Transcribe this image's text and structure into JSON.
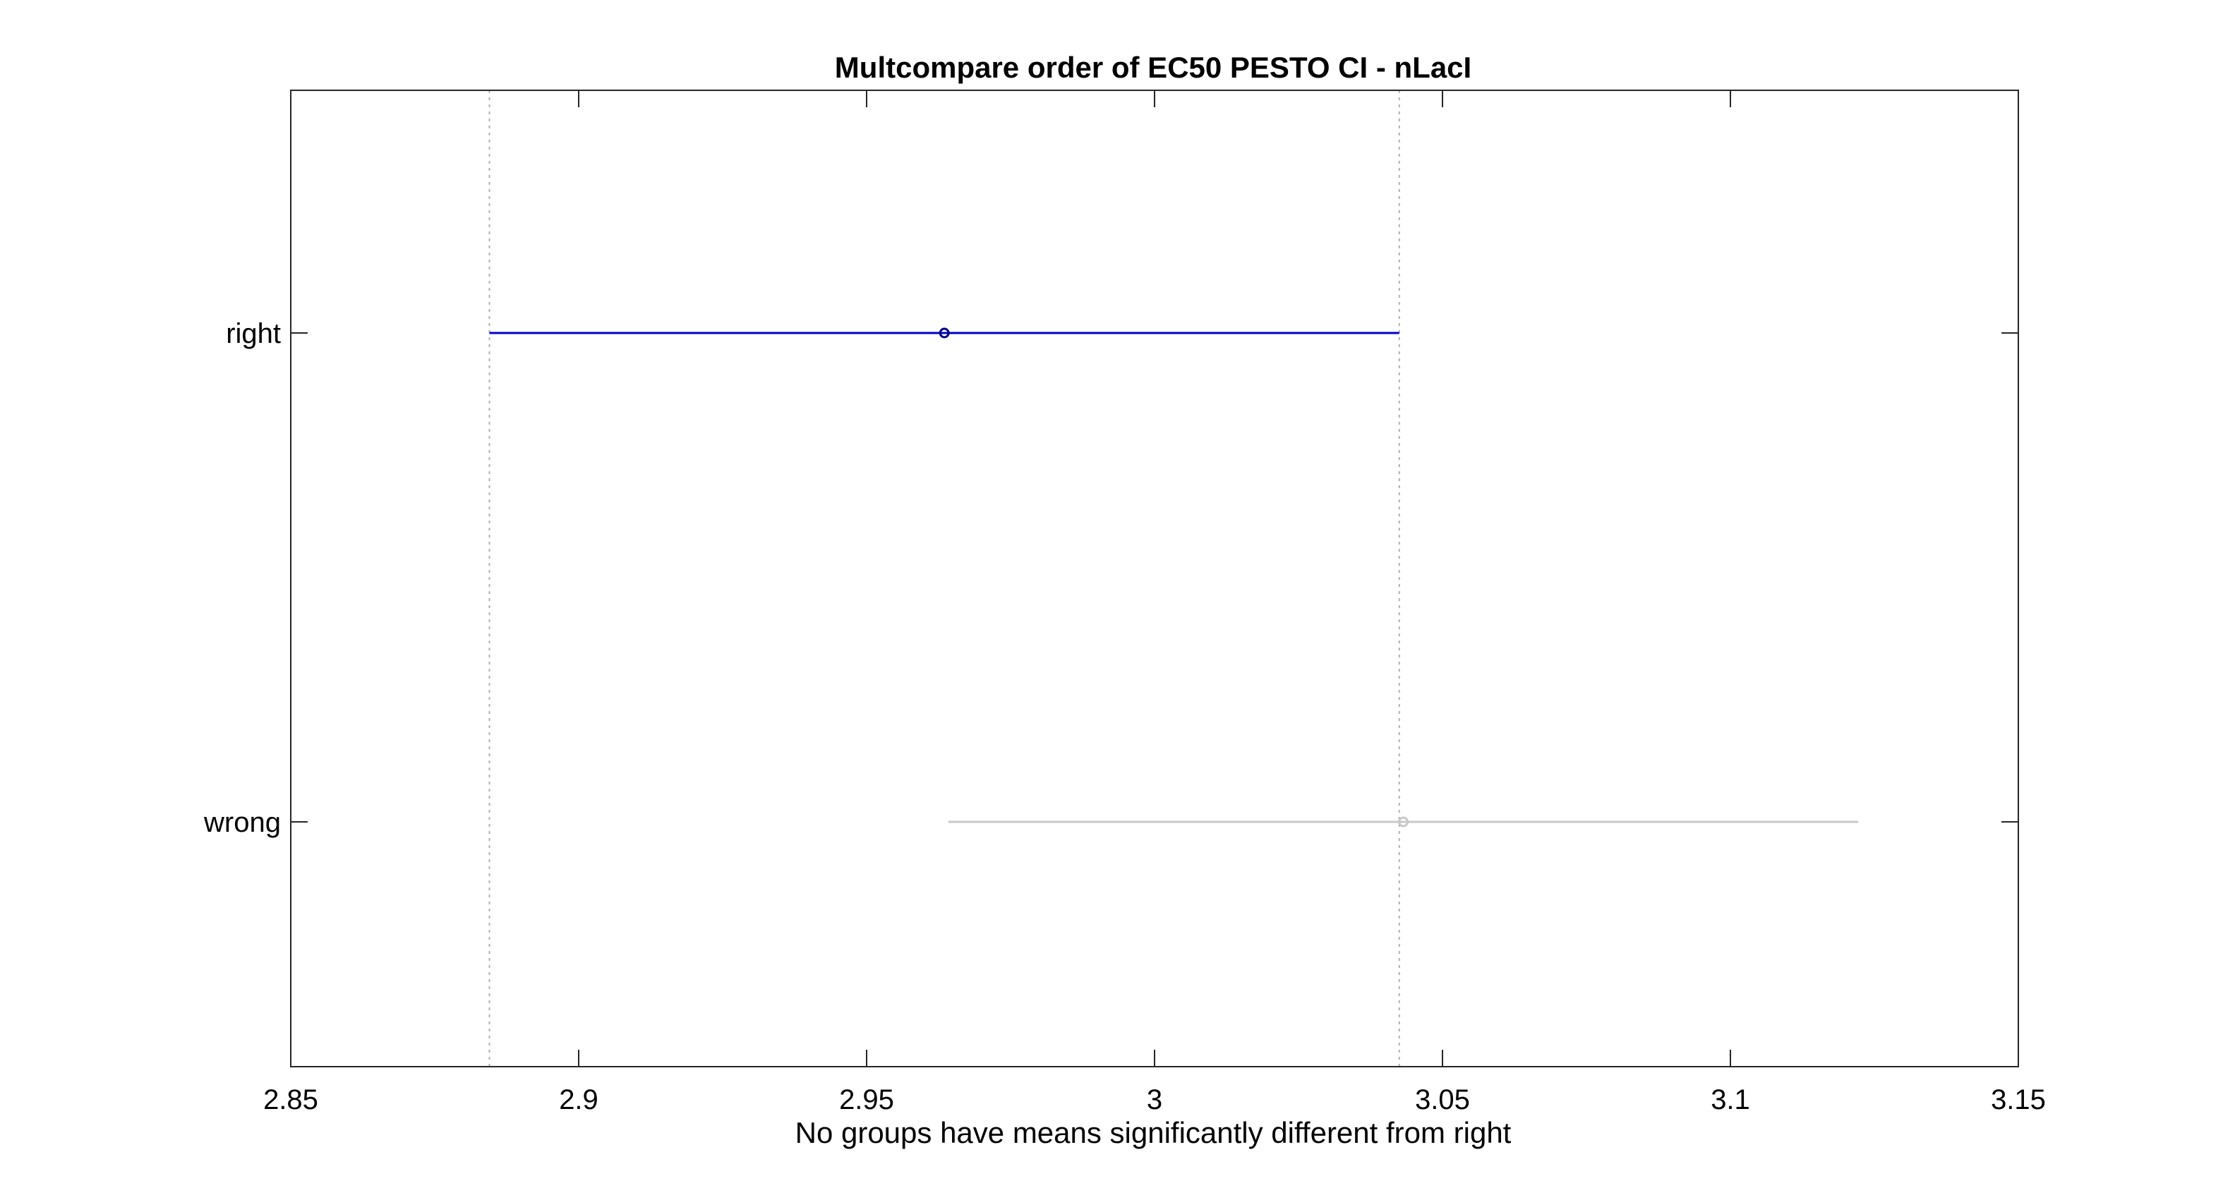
{
  "chart_data": {
    "type": "multcompare-interval",
    "title": "Multcompare order of EC50 PESTO CI - nLacI",
    "xlabel": "No groups have means significantly different from right",
    "ylabel": "",
    "xlim": [
      2.85,
      3.15
    ],
    "xticks": [
      2.85,
      2.9,
      2.95,
      3.0,
      3.05,
      3.1,
      3.15
    ],
    "xtick_labels": [
      "2.85",
      "2.9",
      "2.95",
      "3",
      "3.05",
      "3.1",
      "3.15"
    ],
    "categories": [
      "right",
      "wrong"
    ],
    "groups": [
      {
        "label": "right",
        "mean": 2.9635,
        "lower": 2.8845,
        "upper": 3.0425,
        "color": "#0000cc",
        "selected": true
      },
      {
        "label": "wrong",
        "mean": 3.0432,
        "lower": 2.9642,
        "upper": 3.1222,
        "color": "#c8c8c8",
        "selected": false
      }
    ],
    "reference_lines": [
      2.8845,
      3.0425
    ],
    "grid": false,
    "legend": "none"
  }
}
